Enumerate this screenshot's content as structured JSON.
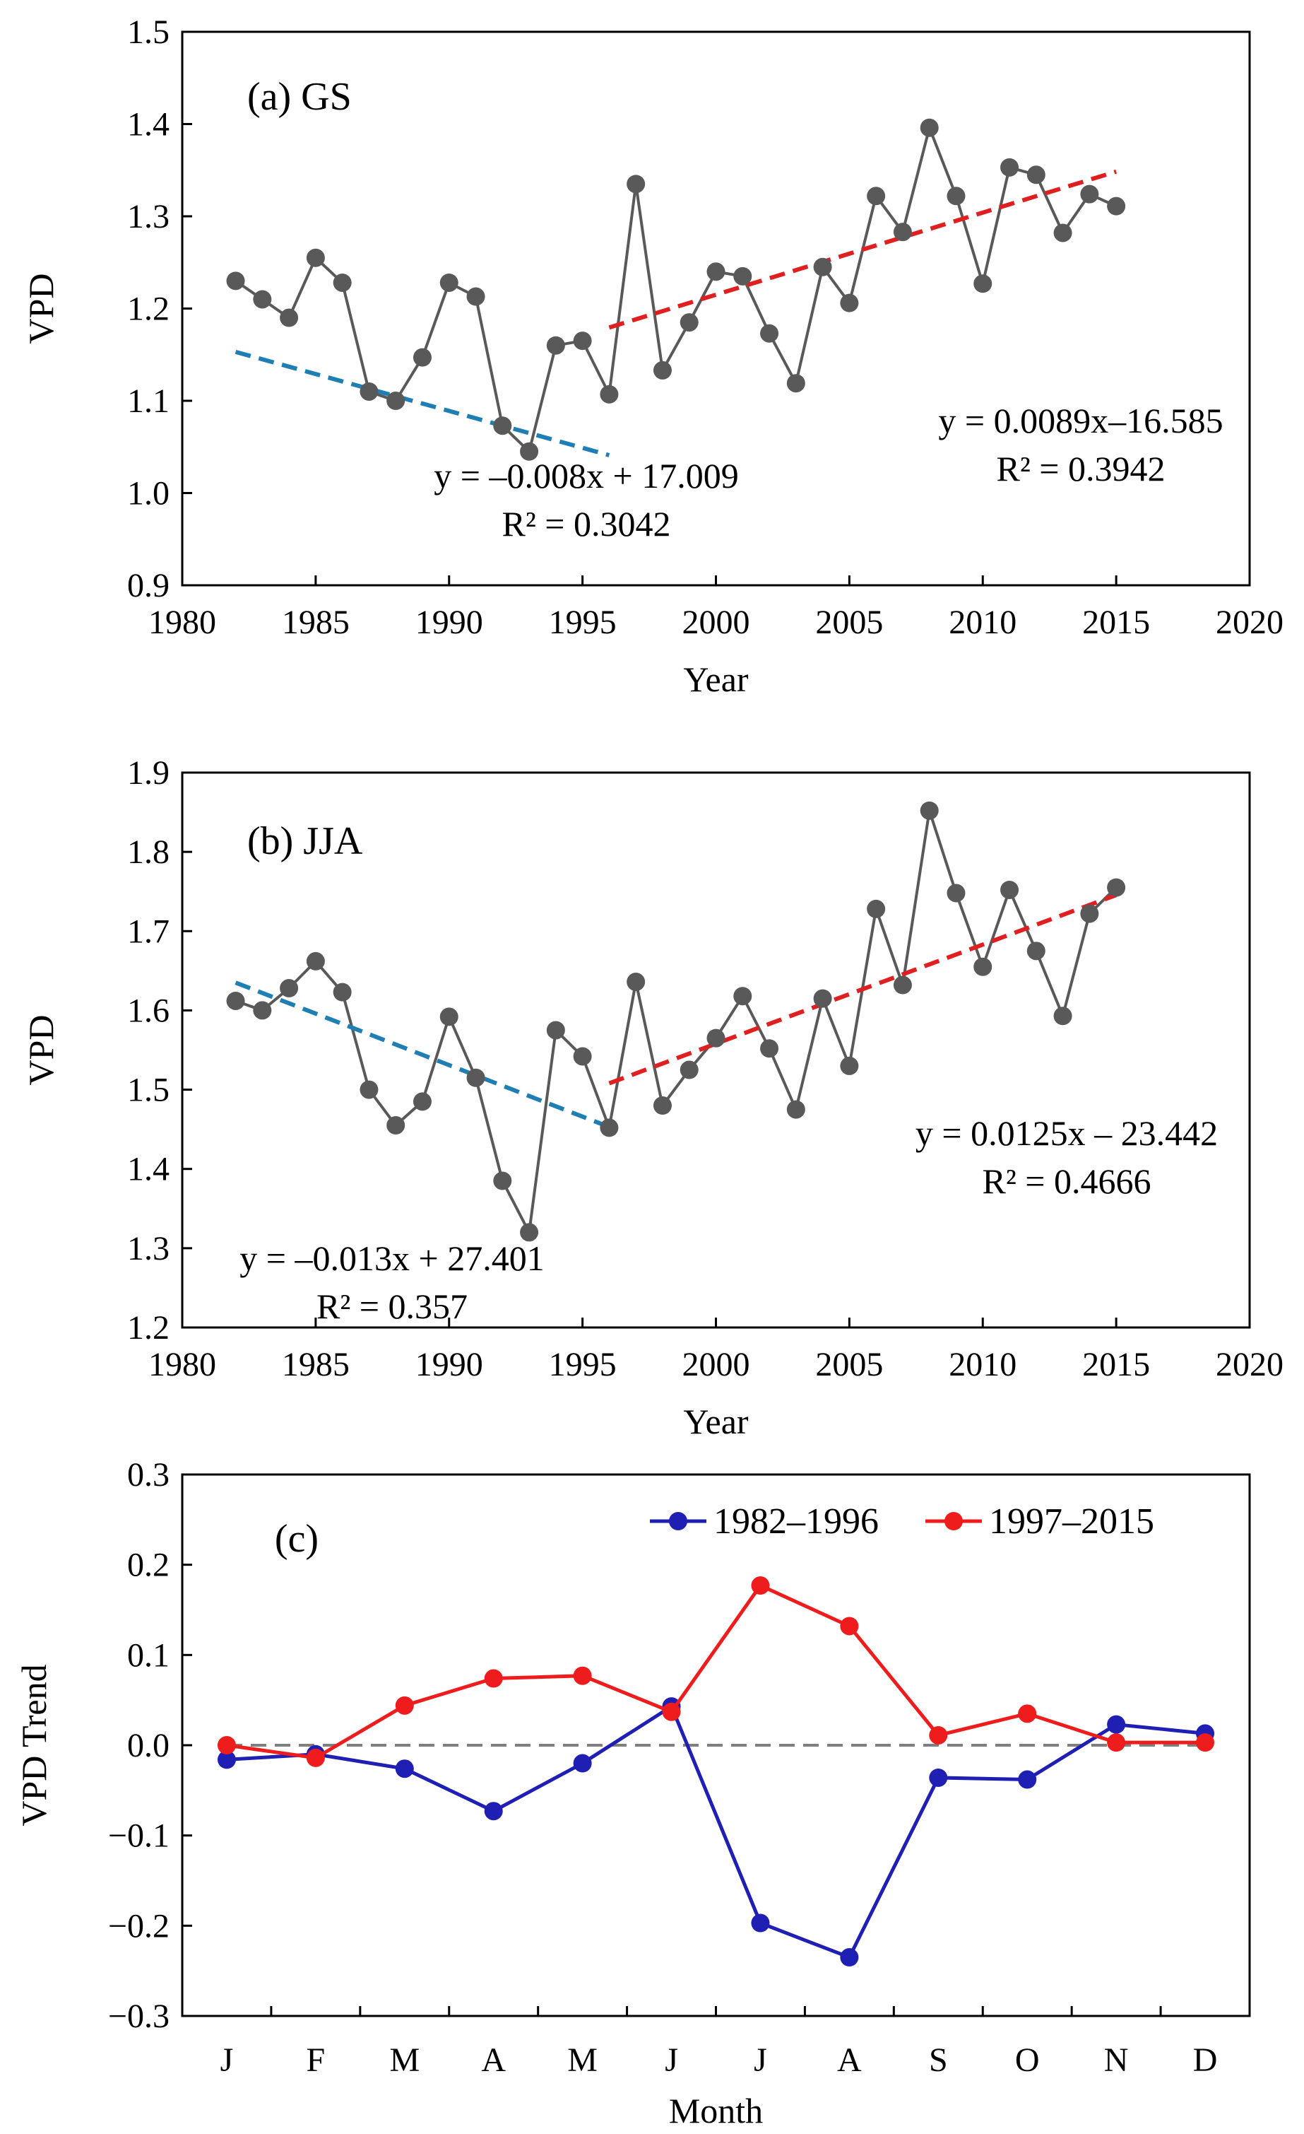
{
  "chart_data": [
    {
      "type": "line",
      "panel_label": "(a) GS",
      "xlabel": "Year",
      "ylabel": "VPD",
      "xlim": [
        1980,
        2020
      ],
      "ylim": [
        0.9,
        1.5
      ],
      "xticks": [
        "1980",
        "1985",
        "1990",
        "1995",
        "2000",
        "2005",
        "2010",
        "2015",
        "2020"
      ],
      "yticks": [
        "0.9",
        "1.0",
        "1.1",
        "1.2",
        "1.3",
        "1.4",
        "1.5"
      ],
      "grid": false,
      "series": [
        {
          "color": "#595959",
          "marker": "circle",
          "x": [
            1982,
            1983,
            1984,
            1985,
            1986,
            1987,
            1988,
            1989,
            1990,
            1991,
            1992,
            1993,
            1994,
            1995,
            1996,
            1997,
            1998,
            1999,
            2000,
            2001,
            2002,
            2003,
            2004,
            2005,
            2006,
            2007,
            2008,
            2009,
            2010,
            2011,
            2012,
            2013,
            2014,
            2015
          ],
          "values": [
            1.23,
            1.21,
            1.19,
            1.255,
            1.228,
            1.11,
            1.1,
            1.147,
            1.228,
            1.213,
            1.073,
            1.045,
            1.16,
            1.165,
            1.107,
            1.335,
            1.133,
            1.185,
            1.24,
            1.235,
            1.173,
            1.119,
            1.245,
            1.206,
            1.322,
            1.283,
            1.396,
            1.322,
            1.227,
            1.353,
            1.345,
            1.282,
            1.324,
            1.311
          ]
        }
      ],
      "trendlines": [
        {
          "x": [
            1982,
            1996
          ],
          "slope": -0.008,
          "intercept": 17.009,
          "color": "#1f7fb4",
          "style": "dashed",
          "equation": "y = –0.008x + 17.009",
          "r2": "R² = 0.3042"
        },
        {
          "x": [
            1996,
            2015
          ],
          "slope": 0.0089,
          "intercept": -16.585,
          "color": "#e02020",
          "style": "dashed",
          "equation": "y = 0.0089x–16.585",
          "r2": "R² = 0.3942"
        }
      ]
    },
    {
      "type": "line",
      "panel_label": "(b) JJA",
      "xlabel": "Year",
      "ylabel": "VPD",
      "xlim": [
        1980,
        2020
      ],
      "ylim": [
        1.2,
        1.9
      ],
      "xticks": [
        "1980",
        "1985",
        "1990",
        "1995",
        "2000",
        "2005",
        "2010",
        "2015",
        "2020"
      ],
      "yticks": [
        "1.2",
        "1.3",
        "1.4",
        "1.5",
        "1.6",
        "1.7",
        "1.8",
        "1.9"
      ],
      "grid": false,
      "series": [
        {
          "color": "#595959",
          "marker": "circle",
          "x": [
            1982,
            1983,
            1984,
            1985,
            1986,
            1987,
            1988,
            1989,
            1990,
            1991,
            1992,
            1993,
            1994,
            1995,
            1996,
            1997,
            1998,
            1999,
            2000,
            2001,
            2002,
            2003,
            2004,
            2005,
            2006,
            2007,
            2008,
            2009,
            2010,
            2011,
            2012,
            2013,
            2014,
            2015
          ],
          "values": [
            1.612,
            1.6,
            1.628,
            1.662,
            1.623,
            1.5,
            1.455,
            1.485,
            1.592,
            1.515,
            1.385,
            1.32,
            1.575,
            1.542,
            1.452,
            1.636,
            1.48,
            1.525,
            1.565,
            1.618,
            1.552,
            1.475,
            1.615,
            1.53,
            1.728,
            1.632,
            1.852,
            1.748,
            1.655,
            1.752,
            1.675,
            1.593,
            1.722,
            1.755
          ]
        }
      ],
      "trendlines": [
        {
          "x": [
            1982,
            1996
          ],
          "slope": -0.013,
          "intercept": 27.401,
          "color": "#1f7fb4",
          "style": "dashed",
          "equation": "y = –0.013x + 27.401",
          "r2": "R² = 0.357"
        },
        {
          "x": [
            1996,
            2015
          ],
          "slope": 0.0125,
          "intercept": -23.442,
          "color": "#e02020",
          "style": "dashed",
          "equation": "y = 0.0125x – 23.442",
          "r2": "R² = 0.4666"
        }
      ]
    },
    {
      "type": "line",
      "panel_label": "(c)",
      "xlabel": "Month",
      "ylabel": "VPD Trend",
      "categories": [
        "J",
        "F",
        "M",
        "A",
        "M",
        "J",
        "J",
        "A",
        "S",
        "O",
        "N",
        "D"
      ],
      "ylim": [
        -0.3,
        0.3
      ],
      "yticks": [
        "−0.3",
        "−0.2",
        "−0.1",
        "0.0",
        "0.1",
        "0.2",
        "0.3"
      ],
      "grid": false,
      "legend_position": "top-right",
      "zero_line": {
        "y": 0,
        "style": "dashed",
        "color": "#7f7f7f"
      },
      "series": [
        {
          "name": "1982–1996",
          "color": "#1f1fb4",
          "marker": "circle",
          "values": [
            -0.016,
            -0.01,
            -0.026,
            -0.073,
            -0.02,
            0.043,
            -0.197,
            -0.235,
            -0.036,
            -0.038,
            0.023,
            0.013
          ]
        },
        {
          "name": "1997–2015",
          "color": "#ee1c1c",
          "marker": "circle",
          "values": [
            0.0,
            -0.014,
            0.044,
            0.074,
            0.077,
            0.037,
            0.177,
            0.132,
            0.011,
            0.035,
            0.003,
            0.003
          ]
        }
      ]
    }
  ]
}
